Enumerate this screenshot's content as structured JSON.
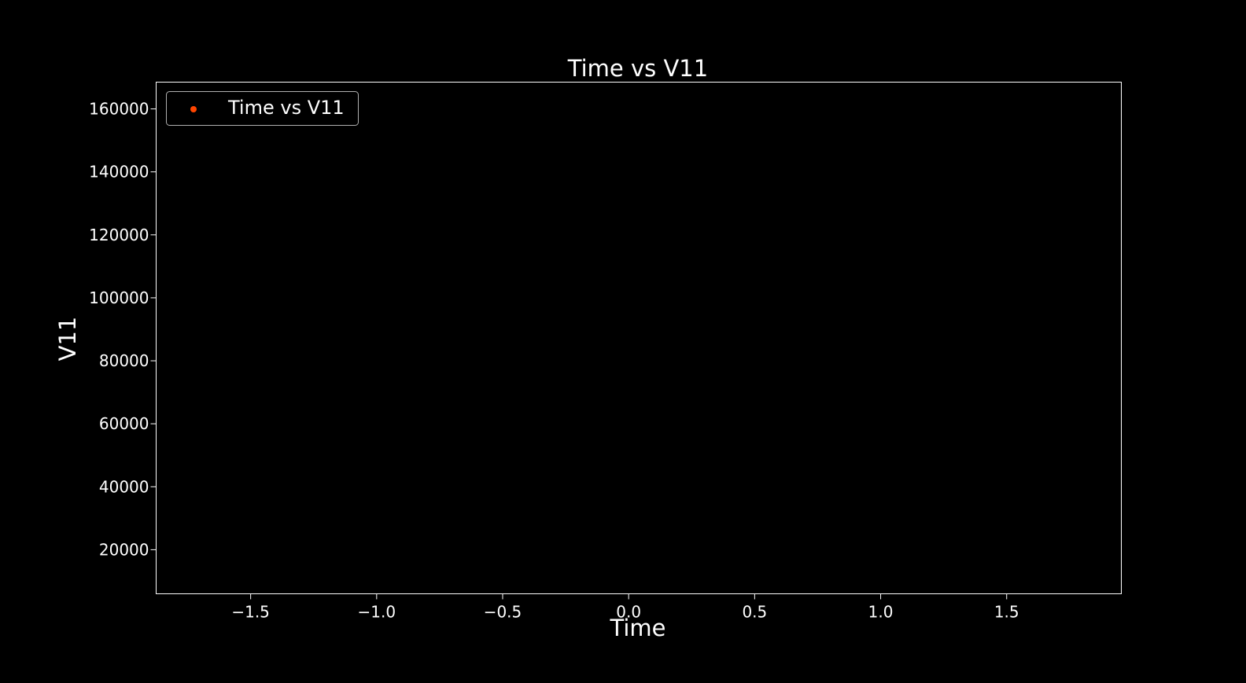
{
  "chart_data": {
    "type": "scatter",
    "title": "Time vs V11",
    "xlabel": "Time",
    "ylabel": "V11",
    "xlim": [
      -1.875,
      1.955
    ],
    "ylim": [
      6000,
      168500
    ],
    "x_ticks": [
      -1.5,
      -1.0,
      -0.5,
      0.0,
      0.5,
      1.0,
      1.5
    ],
    "x_tick_labels": [
      "−1.5",
      "−1.0",
      "−0.5",
      "0.0",
      "0.5",
      "1.0",
      "1.5"
    ],
    "y_ticks": [
      20000,
      40000,
      60000,
      80000,
      100000,
      120000,
      140000,
      160000
    ],
    "y_tick_labels": [
      "20000",
      "40000",
      "60000",
      "80000",
      "100000",
      "120000",
      "140000",
      "160000"
    ],
    "grid": false,
    "legend_position": "upper left",
    "series": [
      {
        "name": "Time vs V11",
        "color": "#ff4500",
        "x": [],
        "y": []
      }
    ],
    "colors": {
      "background": "#000000",
      "foreground": "#ffffff",
      "legend_border": "#b0b0b0"
    }
  }
}
